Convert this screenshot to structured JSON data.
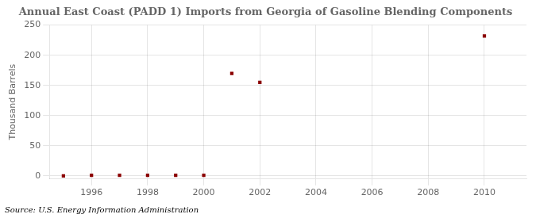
{
  "chart_data": {
    "type": "scatter",
    "title": "Annual East Coast (PADD 1) Imports from Georgia of Gasoline Blending Components",
    "ylabel": "Thousand Barrels",
    "annotations": [
      "Source: U.S. Energy Information Administration"
    ],
    "x": [
      1995,
      1996,
      1997,
      1998,
      1999,
      2000,
      2001,
      2002,
      2010
    ],
    "values": [
      0,
      1,
      1,
      1,
      1,
      1,
      170,
      155,
      232
    ],
    "color": "#8b0000",
    "marker": "square",
    "xlim": [
      1994.5,
      2011.5
    ],
    "ylim": [
      -5,
      250
    ],
    "xticks": [
      1996,
      1998,
      2000,
      2002,
      2004,
      2006,
      2008,
      2010
    ],
    "yticks": [
      0,
      50,
      100,
      150,
      200,
      250
    ],
    "grid": true
  }
}
